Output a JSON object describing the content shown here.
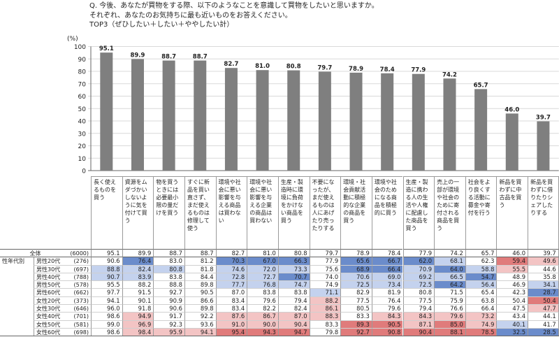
{
  "question": {
    "line1": "Q. 今後、あなたが買物をする際、以下のようなことを意識して買物をしたいと思いますか。",
    "line2": "それぞれ、あなたのお気持ちに最も近いものをお答えください。",
    "line3": "TOP3（ぜひしたい＋したい＋ややしたい計）"
  },
  "chart_data": {
    "type": "bar",
    "y_unit": "(%)",
    "ylim": [
      0,
      100
    ],
    "yticks": [
      "0",
      "10",
      "20",
      "30",
      "40",
      "50",
      "60",
      "70",
      "80",
      "90",
      "100"
    ],
    "grid": true,
    "bar_color": "#7f7f7f",
    "categories": [
      "長く使えるものを買う",
      "資源をムダづかいしないように気を付けて買う",
      "物を買うときには必要最小限の量だけを買う",
      "すぐに新品を買い直さず、まだ使えるものは修理して使う",
      "環境や社会に悪い影響を与える商品は買わない",
      "環境や社会に悪い影響を与える企業の商品は買わない",
      "生産・製造時に環境に負荷をかけない商品を買う",
      "不要になったが、まだ使えるものは人にあげたり売ったりする",
      "環境・社会貢献活動に積極的な企業の商品を買う",
      "環境や社会のためになる商品を積極的に買う",
      "生産・製造に携わる人の生活や人権に配慮した商品を買う",
      "売上の一部が環境や社会のために寄付される商品を買う",
      "社会をより良くする活動に募金や寄付を行う",
      "新品を買わずに中古品を買う",
      "新品を買わずに借りたりシェアしたりする"
    ],
    "values": [
      95.1,
      89.9,
      88.7,
      88.7,
      82.7,
      81.0,
      80.8,
      79.7,
      78.9,
      78.4,
      77.9,
      74.2,
      65.7,
      46.0,
      39.7
    ],
    "value_labels": [
      "95.1",
      "89.9",
      "88.7",
      "88.7",
      "82.7",
      "81.0",
      "80.8",
      "79.7",
      "78.9",
      "78.4",
      "77.9",
      "74.2",
      "65.7",
      "46.0",
      "39.7"
    ],
    "table": {
      "header_total": "全体",
      "group_label": "性年代別",
      "colors": {
        "high": "#e07b7b",
        "high_light": "#f3c4c4",
        "low": "#6b8ccb",
        "low_light": "#c4d2ee",
        "none": "#ffffff"
      },
      "rows": [
        {
          "label": "全体",
          "n": "(6000)",
          "values": [
            "95.1",
            "89.9",
            "88.7",
            "88.7",
            "82.7",
            "81.0",
            "80.8",
            "79.7",
            "78.9",
            "78.4",
            "77.9",
            "74.2",
            "65.7",
            "46.0",
            "39.7"
          ],
          "hl": [
            0,
            0,
            0,
            0,
            0,
            0,
            0,
            0,
            0,
            0,
            0,
            0,
            0,
            0,
            0
          ]
        },
        {
          "label": "男性20代",
          "n": "(276)",
          "values": [
            "90.6",
            "76.4",
            "83.0",
            "81.2",
            "70.3",
            "67.0",
            "66.3",
            "77.9",
            "65.6",
            "66.7",
            "62.0",
            "68.1",
            "62.3",
            "59.4",
            "49.6"
          ],
          "hl": [
            0,
            -2,
            0,
            0,
            -2,
            -2,
            -2,
            0,
            -2,
            -2,
            -2,
            -1,
            0,
            2,
            1
          ]
        },
        {
          "label": "男性30代",
          "n": "(697)",
          "values": [
            "88.8",
            "82.4",
            "80.8",
            "81.8",
            "74.6",
            "72.0",
            "73.3",
            "75.6",
            "68.9",
            "66.4",
            "70.9",
            "64.0",
            "58.8",
            "55.5",
            "44.6"
          ],
          "hl": [
            -1,
            -1,
            -1,
            0,
            -1,
            -1,
            -1,
            0,
            -2,
            -2,
            -1,
            -2,
            -1,
            1,
            0
          ]
        },
        {
          "label": "男性40代",
          "n": "(788)",
          "values": [
            "90.7",
            "83.9",
            "83.8",
            "84.4",
            "72.8",
            "72.7",
            "70.7",
            "74.0",
            "70.6",
            "69.0",
            "69.2",
            "66.5",
            "54.7",
            "48.9",
            "35.8"
          ],
          "hl": [
            -1,
            -1,
            0,
            0,
            -1,
            -1,
            -2,
            0,
            -1,
            -1,
            -1,
            -1,
            -2,
            0,
            0
          ]
        },
        {
          "label": "男性50代",
          "n": "(578)",
          "values": [
            "95.5",
            "88.2",
            "88.8",
            "89.8",
            "77.7",
            "76.8",
            "74.7",
            "74.9",
            "72.5",
            "73.4",
            "72.5",
            "64.2",
            "56.4",
            "46.9",
            "34.1"
          ],
          "hl": [
            0,
            0,
            0,
            0,
            -1,
            -1,
            -1,
            0,
            -1,
            -1,
            -1,
            -2,
            -1,
            0,
            -1
          ]
        },
        {
          "label": "男性60代",
          "n": "(662)",
          "values": [
            "97.7",
            "91.5",
            "92.7",
            "90.5",
            "87.0",
            "83.8",
            "83.8",
            "71.1",
            "82.9",
            "81.9",
            "80.8",
            "71.5",
            "65.4",
            "42.3",
            "28.7"
          ],
          "hl": [
            0,
            0,
            0,
            0,
            0,
            0,
            0,
            -1,
            0,
            0,
            0,
            0,
            0,
            0,
            -2
          ]
        },
        {
          "label": "女性20代",
          "n": "(373)",
          "values": [
            "94.1",
            "90.1",
            "90.9",
            "86.6",
            "83.4",
            "79.6",
            "79.4",
            "88.2",
            "77.5",
            "76.4",
            "77.5",
            "75.9",
            "63.8",
            "50.4",
            "50.4"
          ],
          "hl": [
            0,
            0,
            0,
            0,
            0,
            0,
            0,
            1,
            0,
            0,
            0,
            0,
            0,
            0,
            2
          ]
        },
        {
          "label": "女性30代",
          "n": "(646)",
          "values": [
            "96.0",
            "91.8",
            "90.6",
            "89.8",
            "83.4",
            "82.2",
            "82.4",
            "86.1",
            "80.5",
            "79.6",
            "79.4",
            "76.6",
            "66.4",
            "47.5",
            "47.7"
          ],
          "hl": [
            0,
            0,
            0,
            0,
            0,
            0,
            0,
            1,
            0,
            0,
            0,
            0,
            0,
            0,
            1
          ]
        },
        {
          "label": "女性40代",
          "n": "(701)",
          "values": [
            "98.6",
            "94.9",
            "91.7",
            "92.2",
            "87.6",
            "86.7",
            "87.0",
            "88.3",
            "83.3",
            "84.3",
            "84.3",
            "79.6",
            "73.2",
            "43.4",
            "44.1"
          ],
          "hl": [
            0,
            1,
            0,
            0,
            1,
            1,
            1,
            1,
            0,
            1,
            1,
            1,
            1,
            0,
            0
          ]
        },
        {
          "label": "女性50代",
          "n": "(581)",
          "values": [
            "99.0",
            "96.9",
            "92.3",
            "93.6",
            "91.0",
            "90.0",
            "90.4",
            "83.3",
            "89.3",
            "90.5",
            "87.1",
            "85.0",
            "74.9",
            "40.1",
            "41.7"
          ],
          "hl": [
            0,
            1,
            0,
            0,
            1,
            1,
            1,
            0,
            2,
            2,
            1,
            2,
            1,
            -1,
            0
          ]
        },
        {
          "label": "女性60代",
          "n": "(698)",
          "values": [
            "98.6",
            "98.4",
            "95.9",
            "94.1",
            "95.4",
            "94.3",
            "94.7",
            "79.8",
            "92.7",
            "90.8",
            "90.4",
            "88.1",
            "78.5",
            "32.5",
            "28.5"
          ],
          "hl": [
            0,
            1,
            1,
            1,
            2,
            2,
            2,
            0,
            2,
            2,
            2,
            2,
            2,
            -2,
            -2
          ]
        }
      ]
    }
  }
}
